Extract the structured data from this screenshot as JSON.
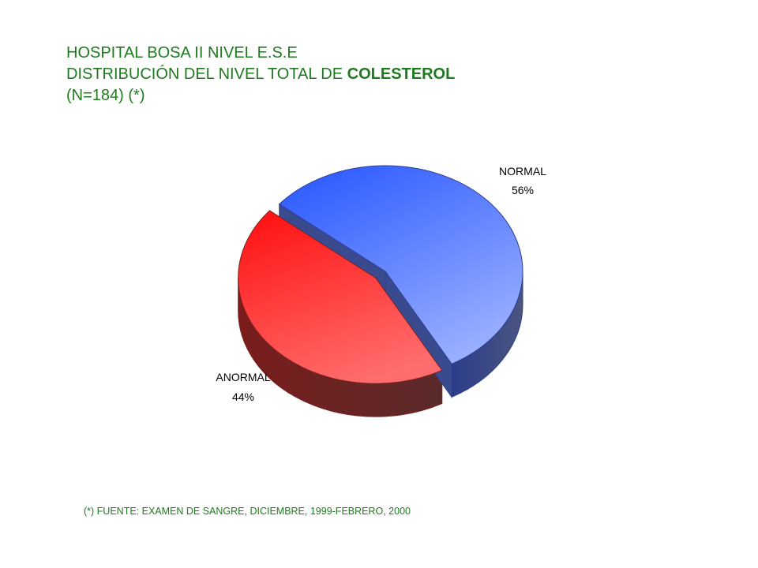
{
  "title": {
    "line1": "HOSPITAL BOSA II NIVEL E.S.E",
    "line2_prefix": "DISTRIBUCIÓN DEL NIVEL TOTAL DE ",
    "line2_highlight": "COLESTEROL",
    "line3": "(N=184) (*)"
  },
  "chart_data": {
    "type": "pie",
    "title": "HOSPITAL BOSA II NIVEL E.S.E DISTRIBUCIÓN DEL NIVEL TOTAL DE COLESTEROL (N=184) (*)",
    "slices": [
      {
        "label": "NORMAL",
        "value": 56,
        "value_label": "56%",
        "color": "#3366ff",
        "exploded": false
      },
      {
        "label": "ANORMAL",
        "value": 44,
        "value_label": "44%",
        "color": "#ff2222",
        "exploded": true
      }
    ],
    "three_d": true
  },
  "colors": {
    "title_text": "#1f7a1f",
    "normal_top": "#3366ff",
    "normal_side": "#3a4a80",
    "anormal_top": "#ff2222",
    "anormal_side": "#6a2222"
  },
  "footnote": "(*) FUENTE: EXAMEN DE SANGRE, DICIEMBRE, 1999-FEBRERO,  2000"
}
